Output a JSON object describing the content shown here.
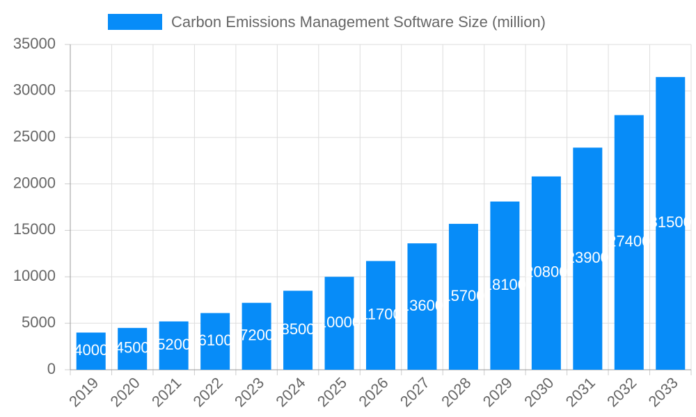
{
  "chart_data": {
    "type": "bar",
    "categories": [
      "2019",
      "2020",
      "2021",
      "2022",
      "2023",
      "2024",
      "2025",
      "2026",
      "2027",
      "2028",
      "2029",
      "2030",
      "2031",
      "2032",
      "2033"
    ],
    "series": [
      {
        "name": "Carbon Emissions Management Software Size (million)",
        "color": "#078cf8",
        "values": [
          4000,
          4500,
          5200,
          6100,
          7200,
          8500,
          10000,
          11700,
          13600,
          15700,
          18100,
          20800,
          23900,
          27400,
          31500
        ]
      }
    ],
    "ylim": [
      0,
      35000
    ],
    "yticks": [
      0,
      5000,
      10000,
      15000,
      20000,
      25000,
      30000,
      35000
    ],
    "grid": true,
    "legend": "top",
    "data_labels": true
  }
}
